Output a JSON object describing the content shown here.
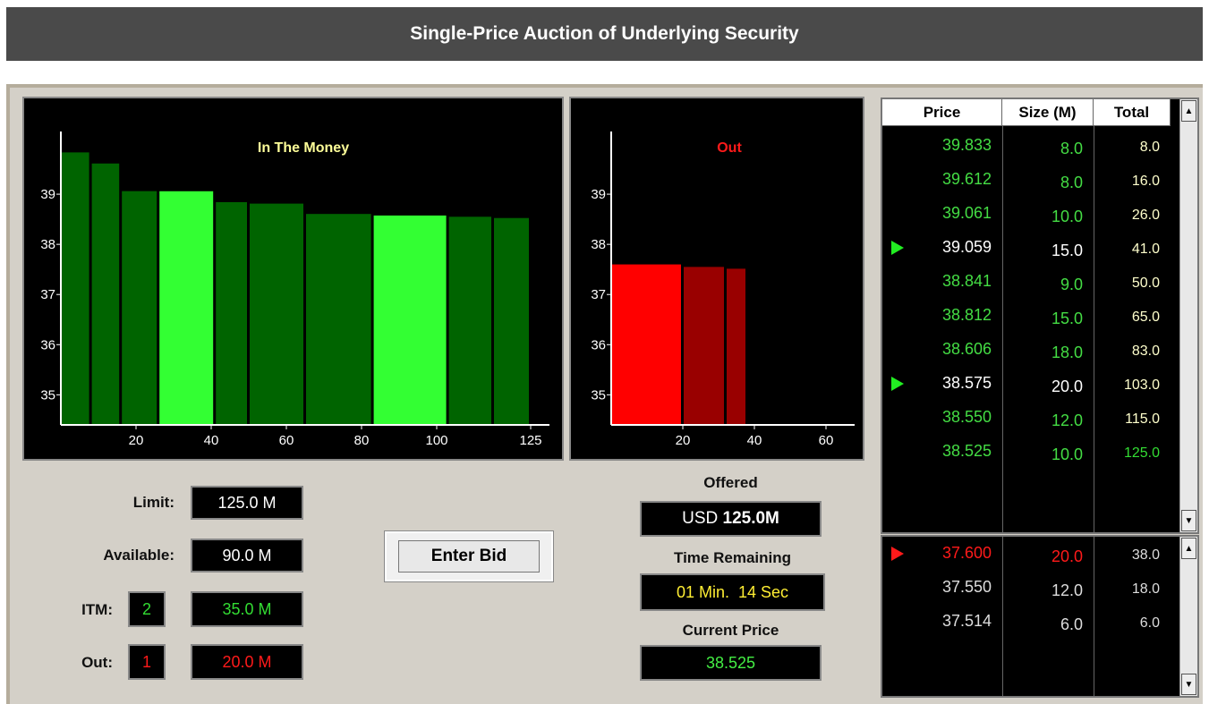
{
  "header": {
    "title": "Single-Price Auction of Underlying Security"
  },
  "chart_data": [
    {
      "type": "bar",
      "title": "In The Money",
      "ylim": [
        34.4,
        40.25
      ],
      "yticks": [
        35,
        36,
        37,
        38,
        39
      ],
      "xlim": [
        0,
        130
      ],
      "xticks": [
        20,
        40,
        60,
        80,
        100,
        125
      ],
      "rows": [
        {
          "price": "39.833",
          "size": "8.0",
          "total": "8.0",
          "selected": false
        },
        {
          "price": "39.612",
          "size": "8.0",
          "total": "16.0",
          "selected": false
        },
        {
          "price": "39.061",
          "size": "10.0",
          "total": "26.0",
          "selected": false
        },
        {
          "price": "39.059",
          "size": "15.0",
          "total": "41.0",
          "selected": true
        },
        {
          "price": "38.841",
          "size": "9.0",
          "total": "50.0",
          "selected": false
        },
        {
          "price": "38.812",
          "size": "15.0",
          "total": "65.0",
          "selected": false
        },
        {
          "price": "38.606",
          "size": "18.0",
          "total": "83.0",
          "selected": false
        },
        {
          "price": "38.575",
          "size": "20.0",
          "total": "103.0",
          "selected": true
        },
        {
          "price": "38.550",
          "size": "12.0",
          "total": "115.0",
          "selected": false
        },
        {
          "price": "38.525",
          "size": "10.0",
          "total": "125.0",
          "selected": false
        }
      ]
    },
    {
      "type": "bar",
      "title": "Out",
      "ylim": [
        34.4,
        40.25
      ],
      "yticks": [
        35,
        36,
        37,
        38,
        39
      ],
      "xlim": [
        0,
        68
      ],
      "xticks": [
        20,
        40,
        60
      ],
      "rows": [
        {
          "price": "37.600",
          "size": "20.0",
          "total": "38.0",
          "selected": true
        },
        {
          "price": "37.550",
          "size": "12.0",
          "total": "18.0",
          "selected": false
        },
        {
          "price": "37.514",
          "size": "6.0",
          "total": "6.0",
          "selected": false
        }
      ]
    }
  ],
  "order_book": {
    "columns": [
      "Price",
      "Size (M)",
      "Total"
    ]
  },
  "form": {
    "limit": {
      "label": "Limit:",
      "value": "125.0 M"
    },
    "available": {
      "label": "Available:",
      "value": "90.0 M"
    },
    "itm": {
      "label": "ITM:",
      "count": "2",
      "value": "35.0 M"
    },
    "out": {
      "label": "Out:",
      "count": "1",
      "value": "20.0 M"
    },
    "button": "Enter Bid"
  },
  "status": {
    "offered": {
      "label": "Offered",
      "currency": "USD",
      "value": "125.0M"
    },
    "time": {
      "label": "Time Remaining",
      "value": "01 Min.  14 Sec"
    },
    "current": {
      "label": "Current Price",
      "value": "38.525"
    }
  }
}
